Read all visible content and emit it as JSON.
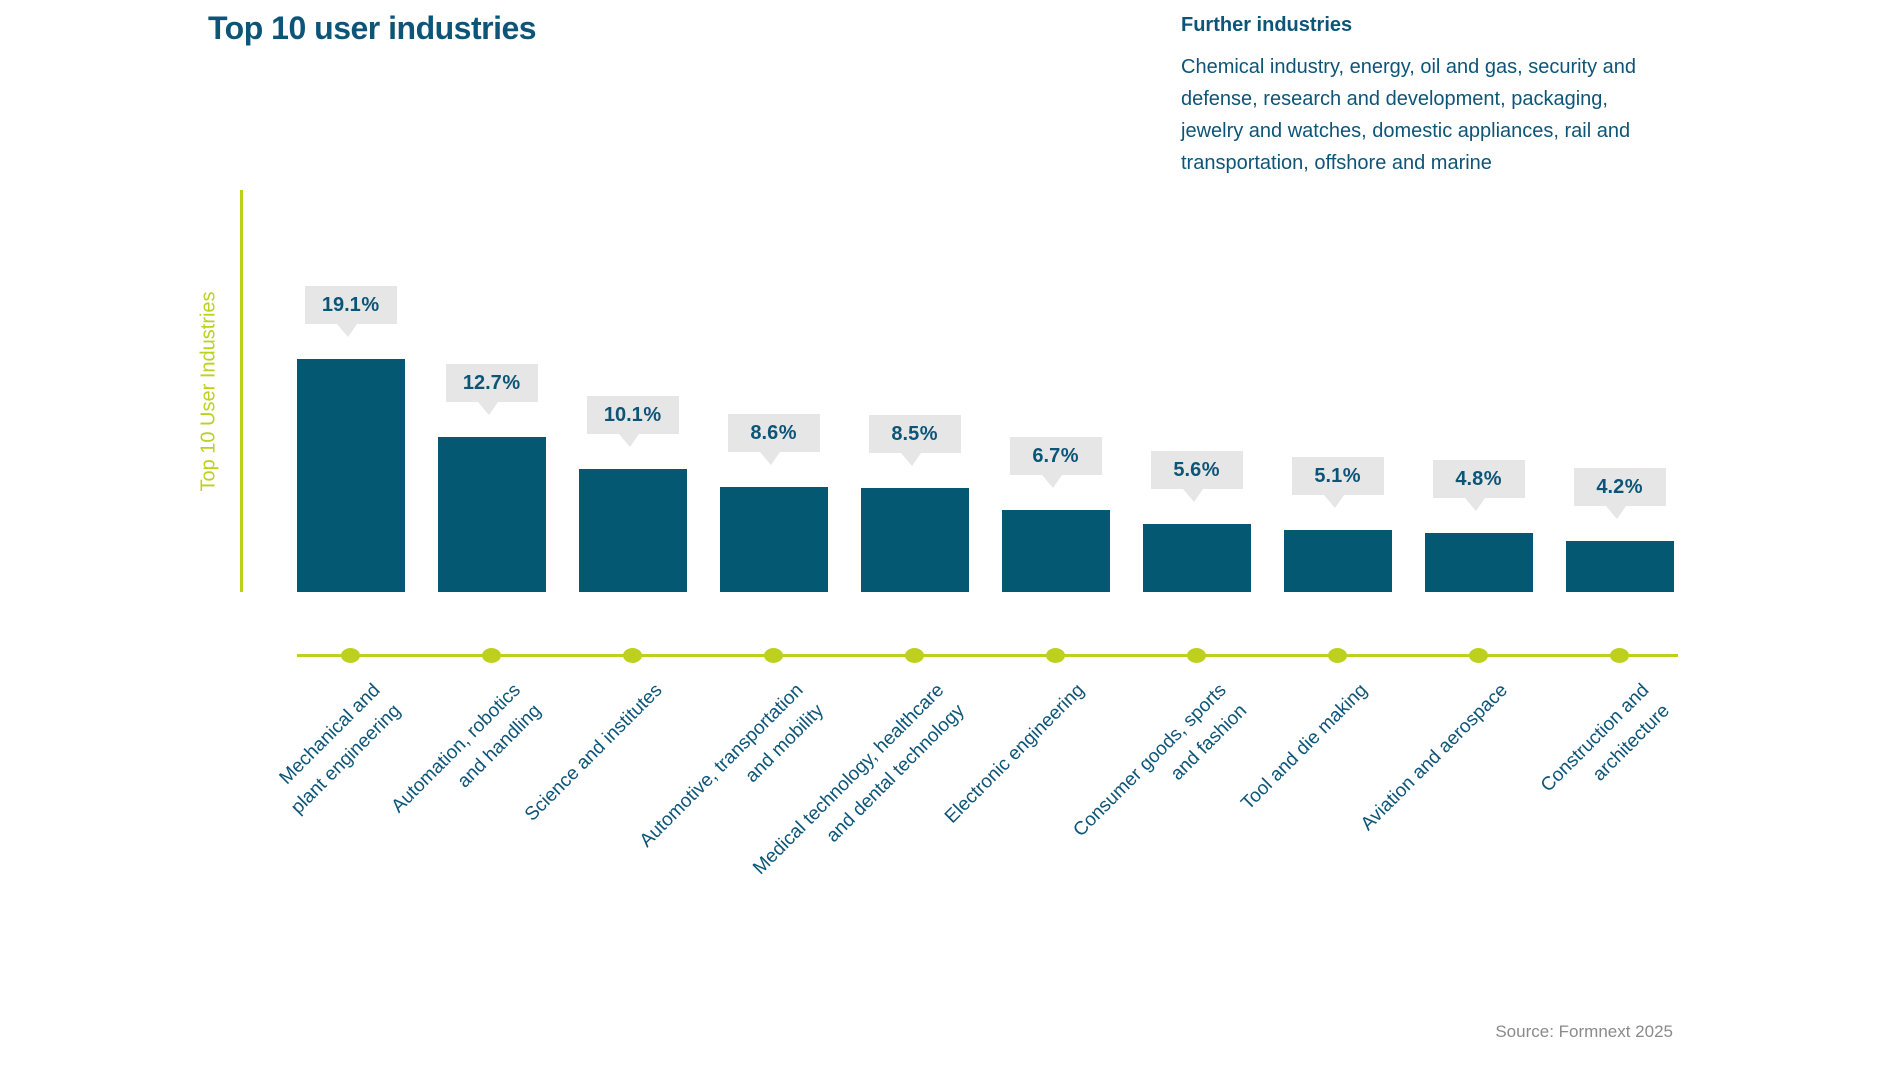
{
  "header": {
    "title": "Top 10 user industries"
  },
  "further_industries": {
    "heading": "Further industries",
    "body": "Chemical industry, energy, oil and gas, security and defense, research and development, packaging, jewelry and watches, domestic appliances, rail and transportation, offshore and marine",
    "body_lines": [
      "Chemical industry, energy, oil and gas, security and",
      "defense, research and development, packaging,",
      "jewelry and watches, domestic appliances, rail and",
      "transportation, offshore and marine"
    ]
  },
  "source": {
    "label": "Source: Formnext 2025"
  },
  "colors": {
    "bar": "#055872",
    "text": "#0d5578",
    "accent_green": "#bdd01e",
    "callout_bg": "#e6e6e6",
    "source_text": "#8a8a8a"
  },
  "chart_data": {
    "type": "bar",
    "title": "Top 10 user industries",
    "ylabel": "Top 10 User Industries",
    "xlabel": "",
    "unit": "%",
    "ylim": [
      0,
      20
    ],
    "grid": false,
    "legend": false,
    "categories": [
      "Mechanical and plant engineering",
      "Automation, robotics and handling",
      "Science and institutes",
      "Automotive, transportation and mobility",
      "Medical technology, healthcare and dental technology",
      "Electronic engineering",
      "Consumer goods, sports and fashion",
      "Tool and die making",
      "Aviation and aerospace",
      "Construction and architecture"
    ],
    "category_lines": [
      [
        "Mechanical and",
        "plant engineering"
      ],
      [
        "Automation, robotics",
        "and handling"
      ],
      [
        "Science and institutes"
      ],
      [
        "Automotive, transportation",
        "and mobility"
      ],
      [
        "Medical technology, healthcare",
        "and dental technology"
      ],
      [
        "Electronic engineering"
      ],
      [
        "Consumer goods, sports",
        "and fashion"
      ],
      [
        "Tool and die making"
      ],
      [
        "Aviation and aerospace"
      ],
      [
        "Construction and",
        "architecture"
      ]
    ],
    "values": [
      19.1,
      12.7,
      10.1,
      8.6,
      8.5,
      6.7,
      5.6,
      5.1,
      4.8,
      4.2
    ],
    "value_labels": [
      "19.1 %",
      "12.7 %",
      "10.1 %",
      "8.6 %",
      "8.5 %",
      "6.7 %",
      "5.6 %",
      "5.1 %",
      "4.8 %",
      "4.2 %"
    ]
  }
}
